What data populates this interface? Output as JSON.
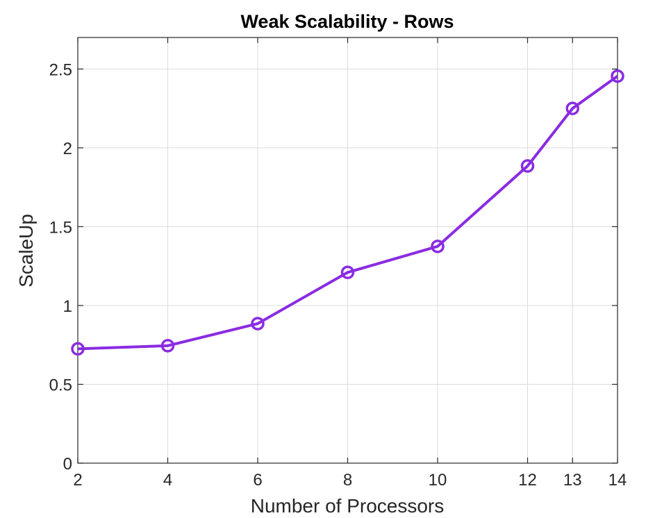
{
  "chart_data": {
    "type": "line",
    "title": "Weak Scalability - Rows",
    "xlabel": "Number of Processors",
    "ylabel": "ScaleUp",
    "xlim": [
      2,
      14
    ],
    "ylim": [
      0,
      2.7
    ],
    "xticks": [
      2,
      4,
      6,
      8,
      10,
      12,
      13,
      14
    ],
    "yticks": [
      0,
      0.5,
      1,
      1.5,
      2,
      2.5
    ],
    "ytick_labels": [
      "0",
      "0.5",
      "1",
      "1.5",
      "2",
      "2.5"
    ],
    "grid": true,
    "series": [
      {
        "color": "#8a2be2",
        "marker": "circle",
        "x": [
          2,
          4,
          6,
          8,
          10,
          12,
          13,
          14
        ],
        "y": [
          0.725,
          0.745,
          0.885,
          1.21,
          1.375,
          1.885,
          2.25,
          2.455
        ]
      }
    ]
  }
}
